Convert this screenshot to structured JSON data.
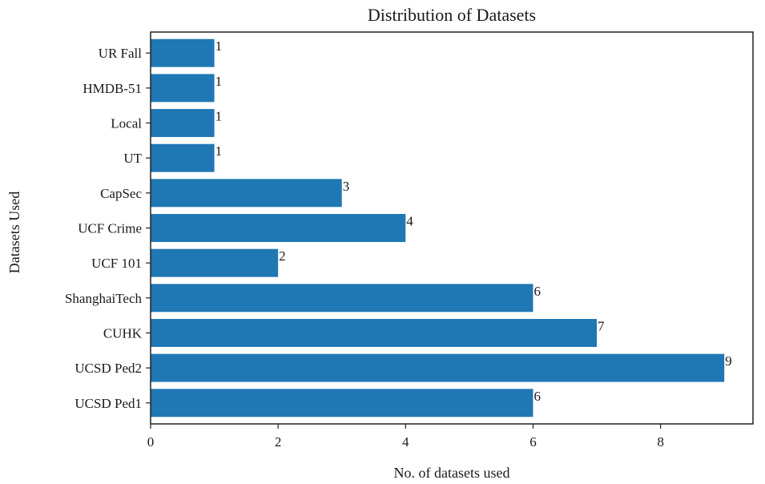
{
  "chart_data": {
    "type": "bar",
    "orientation": "horizontal",
    "title": "Distribution of Datasets",
    "xlabel": "No. of datasets used",
    "ylabel": "Datasets Used",
    "categories": [
      "UCSD Ped1",
      "UCSD Ped2",
      "CUHK",
      "ShanghaiTech",
      "UCF 101",
      "UCF Crime",
      "CapSec",
      "UT",
      "Local",
      "HMDB-51",
      "UR Fall"
    ],
    "values": [
      6,
      9,
      7,
      6,
      2,
      4,
      3,
      1,
      1,
      1,
      1
    ],
    "xlim": [
      0,
      9.45
    ],
    "xticks": [
      0,
      2,
      4,
      6,
      8
    ],
    "grid": false,
    "legend": "none",
    "bar_color": "#1f77b4",
    "data_labels": true
  }
}
